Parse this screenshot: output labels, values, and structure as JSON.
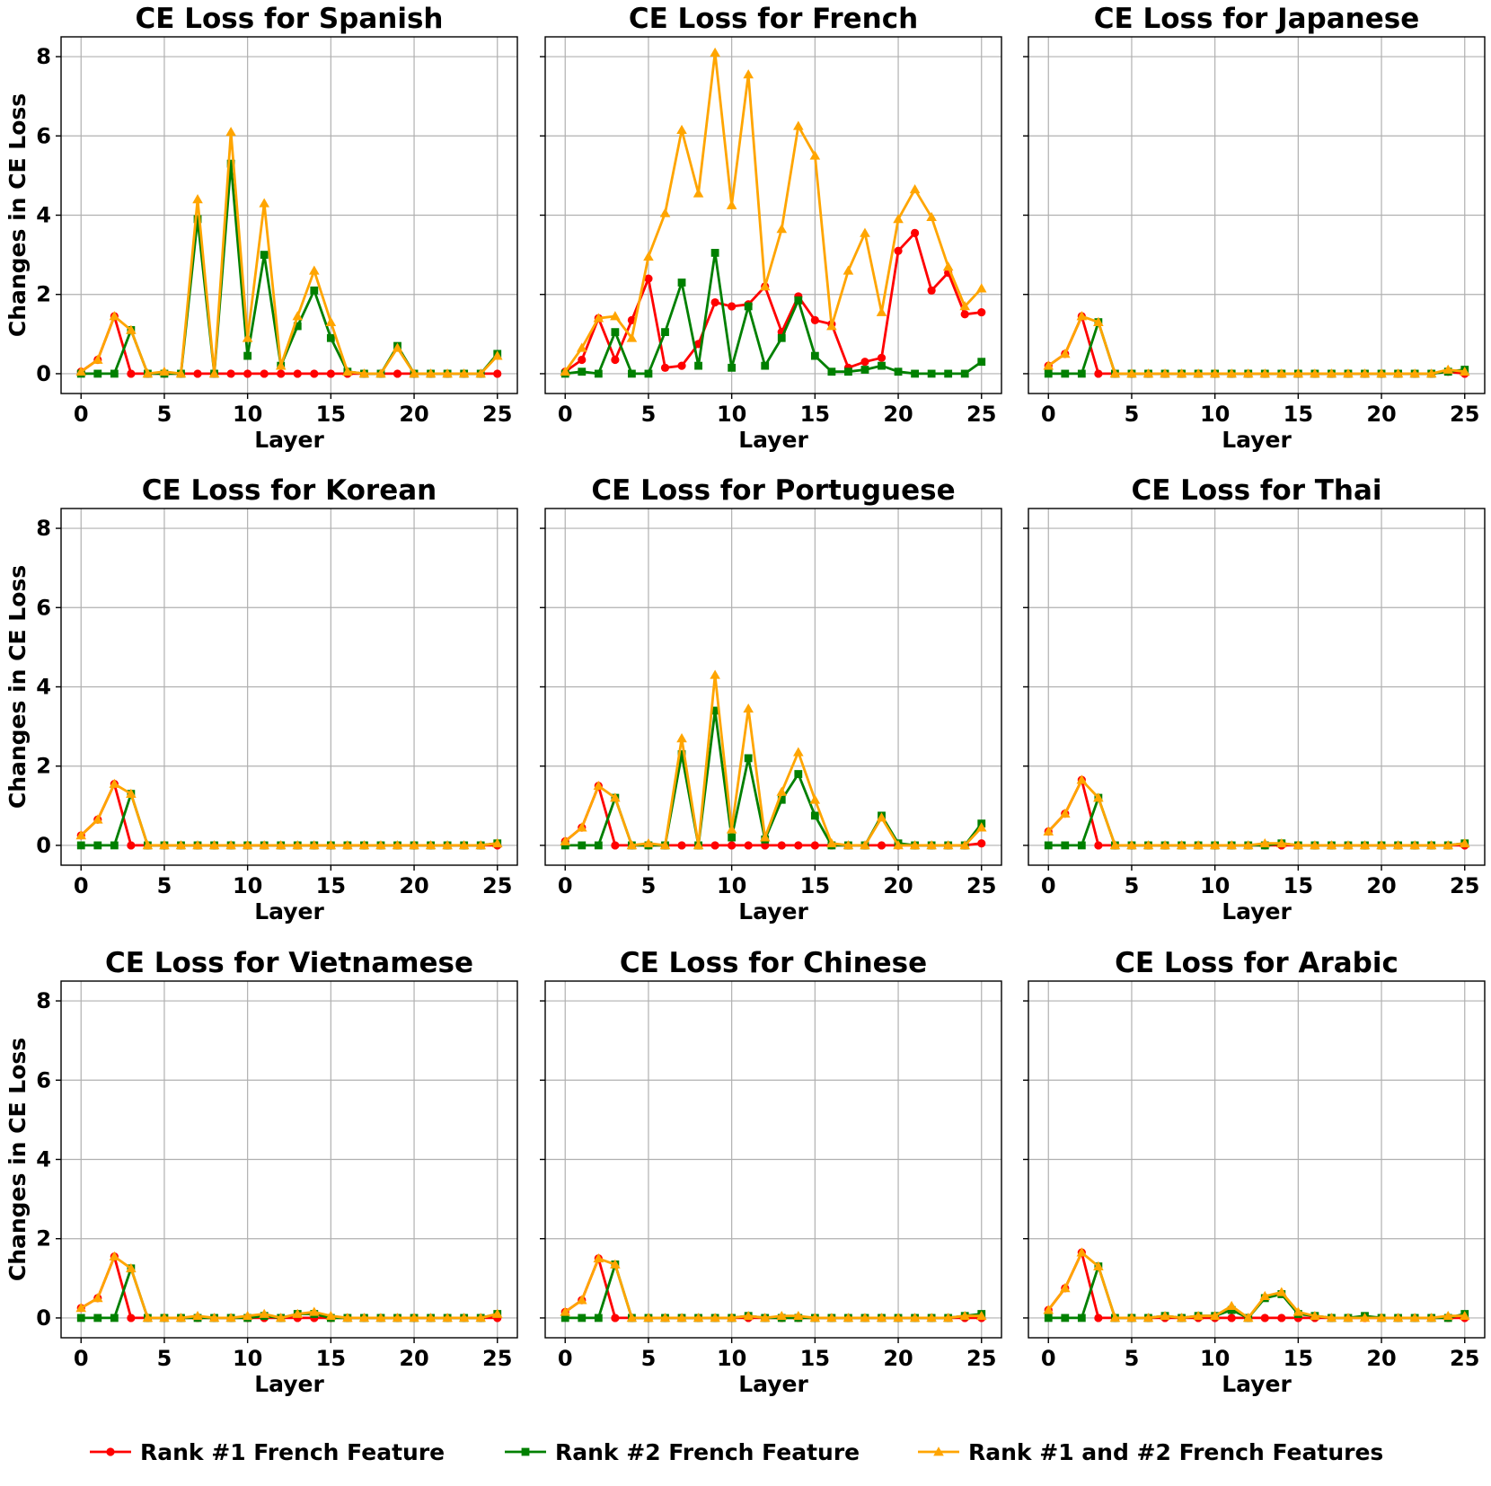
{
  "chart_data": {
    "type": "line",
    "xlabel": "Layer",
    "ylabel": "Changes in CE Loss",
    "xlim": [
      -1.2,
      26.2
    ],
    "ylim": [
      -0.5,
      8.5
    ],
    "xticks": [
      0,
      5,
      10,
      15,
      20,
      25
    ],
    "yticks": [
      0,
      2,
      4,
      6,
      8
    ],
    "grid": true,
    "legend": {
      "position": "bottom-center",
      "entries": [
        {
          "label": "Rank #1 French Feature",
          "color": "#ff0000",
          "marker": "circle"
        },
        {
          "label": "Rank #2 French Feature",
          "color": "#008000",
          "marker": "square"
        },
        {
          "label": "Rank #1 and #2 French Features",
          "color": "#ffa500",
          "marker": "triangle"
        }
      ]
    },
    "x": [
      0,
      1,
      2,
      3,
      4,
      5,
      6,
      7,
      8,
      9,
      10,
      11,
      12,
      13,
      14,
      15,
      16,
      17,
      18,
      19,
      20,
      21,
      22,
      23,
      24,
      25
    ],
    "panels": [
      {
        "title": "CE Loss for Spanish",
        "series": [
          {
            "name": "Rank #1 French Feature",
            "values": [
              0.05,
              0.35,
              1.45,
              0,
              0,
              0,
              0,
              0,
              0,
              0,
              0,
              0,
              0,
              0,
              0,
              0,
              0,
              0,
              0,
              0,
              0,
              0,
              0,
              0,
              0,
              0
            ]
          },
          {
            "name": "Rank #2 French Feature",
            "values": [
              0,
              0,
              0,
              1.1,
              0,
              0,
              0,
              3.9,
              0,
              5.3,
              0.45,
              3.0,
              0.2,
              1.2,
              2.1,
              0.9,
              0.05,
              0,
              0,
              0.7,
              0,
              0,
              0,
              0,
              0,
              0.5
            ]
          },
          {
            "name": "Rank #1 and #2 French Features",
            "values": [
              0.05,
              0.35,
              1.45,
              1.1,
              0,
              0.05,
              0,
              4.4,
              0,
              6.1,
              0.9,
              4.3,
              0.2,
              1.45,
              2.6,
              1.3,
              0.05,
              0,
              0,
              0.65,
              0,
              0,
              0,
              0,
              0,
              0.45
            ]
          }
        ]
      },
      {
        "title": "CE Loss for French",
        "series": [
          {
            "name": "Rank #1 French Feature",
            "values": [
              0.05,
              0.35,
              1.4,
              0.35,
              1.35,
              2.4,
              0.15,
              0.2,
              0.75,
              1.8,
              1.7,
              1.75,
              2.2,
              1.05,
              1.95,
              1.35,
              1.25,
              0.15,
              0.3,
              0.4,
              3.1,
              3.55,
              2.1,
              2.55,
              1.5,
              1.55
            ]
          },
          {
            "name": "Rank #2 French Feature",
            "values": [
              0,
              0.05,
              0,
              1.05,
              0,
              0,
              1.05,
              2.3,
              0.2,
              3.05,
              0.15,
              1.7,
              0.2,
              0.9,
              1.85,
              0.45,
              0.05,
              0.05,
              0.1,
              0.2,
              0.05,
              0,
              0,
              0,
              0,
              0.3
            ]
          },
          {
            "name": "Rank #1 and #2 French Features",
            "values": [
              0.05,
              0.65,
              1.4,
              1.45,
              0.9,
              2.95,
              4.05,
              6.15,
              4.55,
              8.1,
              4.25,
              7.55,
              2.2,
              3.65,
              6.25,
              5.5,
              1.2,
              2.6,
              3.55,
              1.55,
              3.9,
              4.65,
              3.95,
              2.7,
              1.7,
              2.15
            ]
          }
        ]
      },
      {
        "title": "CE Loss for Japanese",
        "series": [
          {
            "name": "Rank #1 French Feature",
            "values": [
              0.2,
              0.5,
              1.45,
              0,
              0,
              0,
              0,
              0,
              0,
              0,
              0,
              0,
              0,
              0,
              0,
              0,
              0,
              0,
              0,
              0,
              0,
              0,
              0,
              0,
              0.05,
              0
            ]
          },
          {
            "name": "Rank #2 French Feature",
            "values": [
              0,
              0,
              0,
              1.3,
              0,
              0,
              0,
              0,
              0,
              0,
              0,
              0,
              0,
              0,
              0,
              0,
              0,
              0,
              0,
              0,
              0,
              0,
              0,
              0,
              0.05,
              0.1
            ]
          },
          {
            "name": "Rank #1 and #2 French Features",
            "values": [
              0.2,
              0.5,
              1.45,
              1.3,
              0,
              0,
              0,
              0,
              0,
              0,
              0,
              0,
              0,
              0,
              0,
              0,
              0,
              0,
              0,
              0,
              0,
              0,
              0,
              0,
              0.1,
              0.05
            ]
          }
        ]
      },
      {
        "title": "CE Loss for Korean",
        "series": [
          {
            "name": "Rank #1 French Feature",
            "values": [
              0.25,
              0.65,
              1.55,
              0,
              0,
              0,
              0,
              0,
              0,
              0,
              0,
              0,
              0,
              0,
              0,
              0,
              0,
              0,
              0,
              0,
              0,
              0,
              0,
              0,
              0,
              0
            ]
          },
          {
            "name": "Rank #2 French Feature",
            "values": [
              0,
              0,
              0,
              1.3,
              0,
              0,
              0,
              0,
              0,
              0,
              0,
              0,
              0,
              0,
              0,
              0,
              0,
              0,
              0,
              0,
              0,
              0,
              0,
              0,
              0,
              0.05
            ]
          },
          {
            "name": "Rank #1 and #2 French Features",
            "values": [
              0.25,
              0.65,
              1.55,
              1.3,
              0,
              0,
              0,
              0,
              0,
              0,
              0,
              0,
              0,
              0,
              0,
              0,
              0,
              0,
              0,
              0,
              0,
              0,
              0,
              0,
              0,
              0.05
            ]
          }
        ]
      },
      {
        "title": "CE Loss for Portuguese",
        "series": [
          {
            "name": "Rank #1 French Feature",
            "values": [
              0.1,
              0.45,
              1.5,
              0,
              0,
              0,
              0,
              0,
              0,
              0,
              0,
              0,
              0,
              0,
              0,
              0,
              0,
              0,
              0,
              0,
              0,
              0,
              0,
              0,
              0,
              0.05
            ]
          },
          {
            "name": "Rank #2 French Feature",
            "values": [
              0,
              0,
              0,
              1.2,
              0,
              0,
              0,
              2.3,
              0,
              3.4,
              0.2,
              2.2,
              0.15,
              1.15,
              1.8,
              0.75,
              0,
              0,
              0,
              0.75,
              0.05,
              0,
              0,
              0,
              0,
              0.55
            ]
          },
          {
            "name": "Rank #1 and #2 French Features",
            "values": [
              0.1,
              0.45,
              1.5,
              1.2,
              0,
              0.05,
              0,
              2.7,
              0,
              4.3,
              0.4,
              3.45,
              0.2,
              1.35,
              2.35,
              1.15,
              0.05,
              0,
              0,
              0.7,
              0,
              0,
              0,
              0,
              0,
              0.45
            ]
          }
        ]
      },
      {
        "title": "CE Loss for Thai",
        "series": [
          {
            "name": "Rank #1 French Feature",
            "values": [
              0.35,
              0.8,
              1.65,
              0,
              0,
              0,
              0,
              0,
              0,
              0,
              0,
              0,
              0,
              0,
              0,
              0,
              0,
              0,
              0,
              0,
              0,
              0,
              0,
              0,
              0,
              0
            ]
          },
          {
            "name": "Rank #2 French Feature",
            "values": [
              0,
              0,
              0,
              1.2,
              0,
              0,
              0,
              0,
              0,
              0,
              0,
              0,
              0,
              0,
              0.05,
              0,
              0,
              0,
              0,
              0,
              0,
              0,
              0,
              0,
              0,
              0.05
            ]
          },
          {
            "name": "Rank #1 and #2 French Features",
            "values": [
              0.35,
              0.8,
              1.65,
              1.2,
              0,
              0,
              0,
              0,
              0,
              0,
              0,
              0,
              0,
              0.05,
              0.05,
              0,
              0,
              0,
              0,
              0,
              0,
              0,
              0,
              0,
              0,
              0.05
            ]
          }
        ]
      },
      {
        "title": "CE Loss for Vietnamese",
        "series": [
          {
            "name": "Rank #1 French Feature",
            "values": [
              0.25,
              0.5,
              1.55,
              0,
              0,
              0,
              0,
              0,
              0,
              0,
              0,
              0,
              0,
              0,
              0,
              0,
              0,
              0,
              0,
              0,
              0,
              0,
              0,
              0,
              0,
              0
            ]
          },
          {
            "name": "Rank #2 French Feature",
            "values": [
              0,
              0,
              0,
              1.25,
              0,
              0,
              0,
              0,
              0,
              0,
              0,
              0.05,
              0,
              0.1,
              0.1,
              0,
              0,
              0,
              0,
              0,
              0,
              0,
              0,
              0,
              0,
              0.1
            ]
          },
          {
            "name": "Rank #1 and #2 French Features",
            "values": [
              0.25,
              0.5,
              1.55,
              1.25,
              0,
              0,
              0,
              0.05,
              0,
              0,
              0.05,
              0.1,
              0,
              0.1,
              0.15,
              0.05,
              0,
              0,
              0,
              0,
              0,
              0,
              0,
              0,
              0,
              0.1
            ]
          }
        ]
      },
      {
        "title": "CE Loss for Chinese",
        "series": [
          {
            "name": "Rank #1 French Feature",
            "values": [
              0.15,
              0.45,
              1.5,
              0,
              0,
              0,
              0,
              0,
              0,
              0,
              0,
              0,
              0,
              0,
              0,
              0,
              0,
              0,
              0,
              0,
              0,
              0,
              0,
              0,
              0,
              0
            ]
          },
          {
            "name": "Rank #2 French Feature",
            "values": [
              0,
              0,
              0,
              1.35,
              0,
              0,
              0,
              0,
              0,
              0,
              0,
              0.05,
              0,
              0,
              0,
              0,
              0,
              0,
              0,
              0,
              0,
              0,
              0,
              0,
              0.05,
              0.1
            ]
          },
          {
            "name": "Rank #1 and #2 French Features",
            "values": [
              0.15,
              0.45,
              1.5,
              1.35,
              0,
              0,
              0,
              0,
              0,
              0,
              0,
              0.05,
              0,
              0.05,
              0.05,
              0,
              0,
              0,
              0,
              0,
              0,
              0,
              0,
              0,
              0.05,
              0.05
            ]
          }
        ]
      },
      {
        "title": "CE Loss for Arabic",
        "series": [
          {
            "name": "Rank #1 French Feature",
            "values": [
              0.2,
              0.75,
              1.65,
              0,
              0,
              0,
              0,
              0,
              0,
              0,
              0,
              0,
              0,
              0,
              0,
              0,
              0,
              0,
              0,
              0,
              0,
              0,
              0,
              0,
              0,
              0
            ]
          },
          {
            "name": "Rank #2 French Feature",
            "values": [
              0,
              0,
              0,
              1.3,
              0,
              0,
              0,
              0.05,
              0,
              0.05,
              0.05,
              0.2,
              0,
              0.5,
              0.6,
              0.1,
              0.05,
              0,
              0,
              0.05,
              0,
              0,
              0,
              0,
              0,
              0.1
            ]
          },
          {
            "name": "Rank #1 and #2 French Features",
            "values": [
              0.2,
              0.75,
              1.65,
              1.3,
              0,
              0,
              0,
              0.05,
              0,
              0.05,
              0.05,
              0.3,
              0,
              0.55,
              0.65,
              0.15,
              0.05,
              0,
              0,
              0,
              0,
              0,
              0,
              0,
              0.05,
              0.05
            ]
          }
        ]
      }
    ]
  }
}
